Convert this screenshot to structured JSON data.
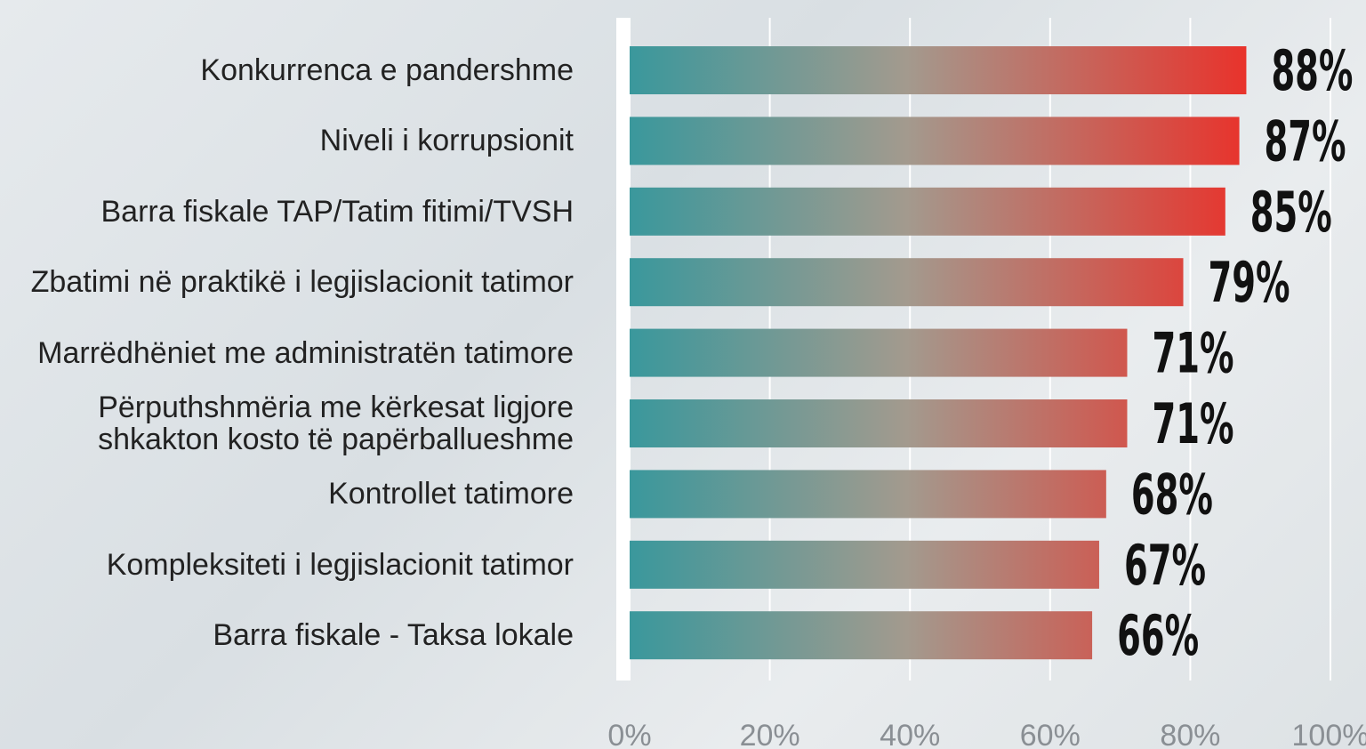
{
  "chart_data": {
    "type": "hbar",
    "categories": [
      "Konkurrenca e pandershme",
      "Niveli i korrupsionit",
      "Barra fiskale TAP/Tatim fitimi/TVSH",
      "Zbatimi në praktikë i legjislacionit tatimor",
      "Marrëdhëniet me administratën tatimore",
      "Përputhshmëria me kërkesat ligjore\nshkakton kosto të papërballueshme",
      "Kontrollet tatimore",
      "Kompleksiteti i legjislacionit tatimor",
      "Barra fiskale - Taksa lokale"
    ],
    "values": [
      88,
      87,
      85,
      79,
      71,
      71,
      68,
      67,
      66
    ],
    "value_labels": [
      "88%",
      "87%",
      "85%",
      "79%",
      "71%",
      "71%",
      "68%",
      "67%",
      "66%"
    ],
    "gradient": [
      "#3a989c",
      "#e8332c"
    ],
    "xlim": [
      0,
      100
    ],
    "xticks": [
      {
        "value": 0,
        "label": "0%"
      },
      {
        "value": 20,
        "label": "20%"
      },
      {
        "value": 40,
        "label": "40%"
      },
      {
        "value": 60,
        "label": "60%"
      },
      {
        "value": 80,
        "label": "80%"
      },
      {
        "value": 100,
        "label": "100%"
      }
    ],
    "grid": true
  }
}
